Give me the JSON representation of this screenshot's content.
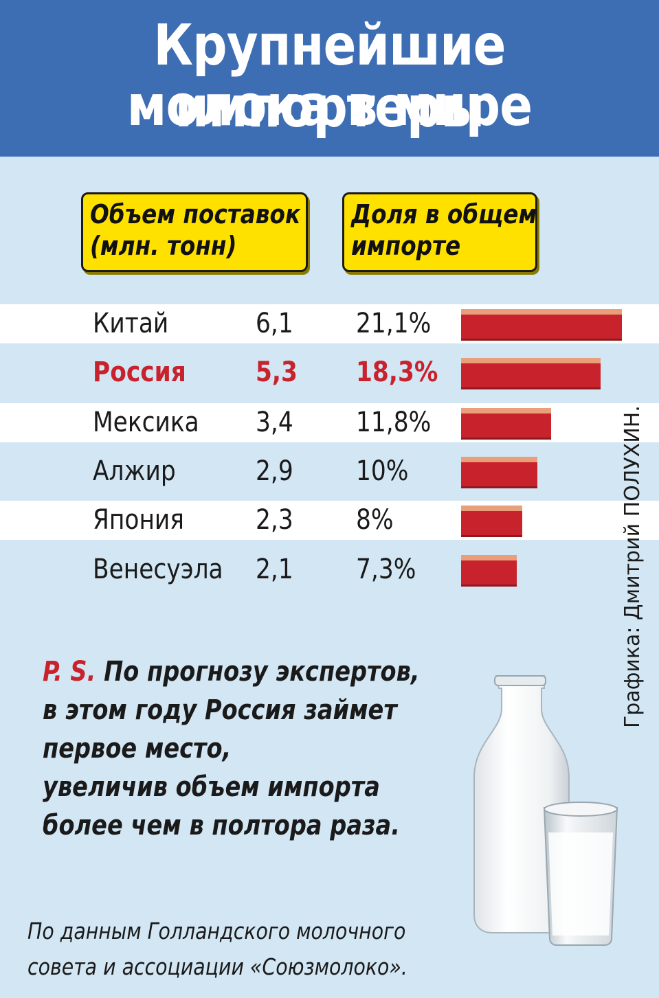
{
  "title_line1": "Крупнейшие импортеры",
  "title_line2": "молока в мире",
  "columns": {
    "volume_line1": "Объем поставок",
    "volume_line2": "(млн. тонн)",
    "share_line1": "Доля в общем",
    "share_line2": "импорте"
  },
  "rows": [
    {
      "country": "Китай",
      "volume": "6,1",
      "share": "21,1%"
    },
    {
      "country": "Россия",
      "volume": "5,3",
      "share": "18,3%"
    },
    {
      "country": "Мексика",
      "volume": "3,4",
      "share": "11,8%"
    },
    {
      "country": "Алжир",
      "volume": "2,9",
      "share": "10%"
    },
    {
      "country": "Япония",
      "volume": "2,3",
      "share": "8%"
    },
    {
      "country": "Венесуэла",
      "volume": "2,1",
      "share": "7,3%"
    }
  ],
  "chart_data": {
    "type": "bar",
    "categories": [
      "Китай",
      "Россия",
      "Мексика",
      "Алжир",
      "Япония",
      "Венесуэла"
    ],
    "series": [
      {
        "name": "Объем поставок (млн. тонн)",
        "values": [
          6.1,
          5.3,
          3.4,
          2.9,
          2.3,
          2.1
        ]
      },
      {
        "name": "Доля в общем импорте",
        "values": [
          21.1,
          18.3,
          11.8,
          10,
          8,
          7.3
        ]
      }
    ],
    "orientation": "horizontal",
    "highlight": "Россия",
    "bar_color": "#c8232c",
    "highlight_color": "#c8232c"
  },
  "credit": "Графика: Дмитрий ПОЛУХИН.",
  "ps": {
    "tag": "P. S.",
    "line1": "По прогнозу экспертов,",
    "line2": "в этом году Россия займет",
    "line3": "первое место,",
    "line4": "увеличив объем импорта",
    "line5": "более чем в полтора раза."
  },
  "source": {
    "line1": "По данным Голландского молочного",
    "line2": "совета и ассоциации «Союзмолоко»."
  },
  "colors": {
    "header_bg": "#3d6db3",
    "page_bg": "#d3e6f4",
    "label_bg": "#ffe100",
    "accent_red": "#c8232c"
  }
}
